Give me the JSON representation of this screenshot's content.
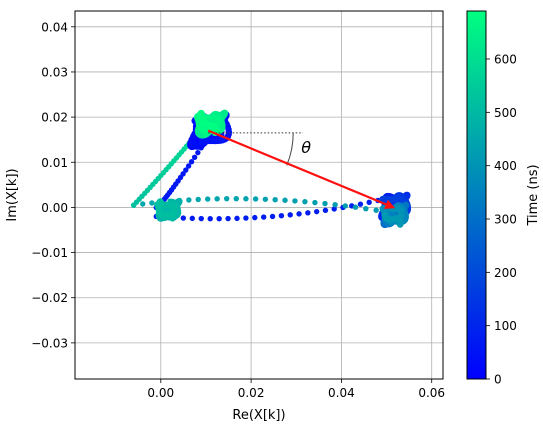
{
  "chart_data": {
    "type": "scatter",
    "xlabel": "Re(X[k])",
    "ylabel": "Im(X[k])",
    "xlim": [
      -0.019,
      0.0625
    ],
    "ylim": [
      -0.038,
      0.0435
    ],
    "xticks": [
      0.0,
      0.02,
      0.04,
      0.06
    ],
    "xtick_labels": [
      "0.00",
      "0.02",
      "0.04",
      "0.06"
    ],
    "yticks": [
      -0.03,
      -0.02,
      -0.01,
      0.0,
      0.01,
      0.02,
      0.03,
      0.04
    ],
    "ytick_labels": [
      "−0.03",
      "−0.02",
      "−0.01",
      "0.00",
      "0.01",
      "0.02",
      "0.03",
      "0.04"
    ],
    "grid": true,
    "colormap": "winter",
    "colorbar": {
      "label": "Time (ns)",
      "range": [
        0,
        690
      ],
      "ticks": [
        0,
        100,
        200,
        300,
        400,
        500,
        600
      ],
      "tick_labels": [
        "0",
        "100",
        "200",
        "300",
        "400",
        "500",
        "600"
      ]
    },
    "clusters": [
      {
        "center": [
          0.0105,
          0.017
        ],
        "time_start": 0,
        "time_end": 60,
        "size": 0.0035
      },
      {
        "center": [
          0.0515,
          0.0
        ],
        "time_start": 85,
        "time_end": 180,
        "size": 0.0025
      },
      {
        "center": [
          0.0515,
          -0.002
        ],
        "time_start": 250,
        "time_end": 420,
        "size": 0.0022
      },
      {
        "center": [
          0.0015,
          -0.001
        ],
        "time_start": 460,
        "time_end": 520,
        "size": 0.002
      },
      {
        "center": [
          0.011,
          0.018
        ],
        "time_start": 600,
        "time_end": 690,
        "size": 0.0025
      }
    ],
    "transitions": [
      {
        "from": [
          0.0105,
          0.0155
        ],
        "via": [
          0.0,
          0.0
        ],
        "to": [
          -0.001,
          0.0
        ],
        "time_start": 60,
        "time_end": 70
      },
      {
        "from": [
          -0.001,
          -0.002
        ],
        "via": [
          0.025,
          -0.004
        ],
        "to": [
          0.05,
          0.002
        ],
        "time_start": 70,
        "time_end": 85
      },
      {
        "from": [
          0.05,
          -0.001
        ],
        "via": [
          0.02,
          0.004
        ],
        "to": [
          -0.006,
          0.0005
        ],
        "time_start": 420,
        "time_end": 460
      },
      {
        "from": [
          -0.006,
          0.0005
        ],
        "via": [
          0.002,
          0.009
        ],
        "to": [
          0.009,
          0.0175
        ],
        "time_start": 520,
        "time_end": 600
      }
    ],
    "arrow": {
      "from": [
        0.0105,
        0.017
      ],
      "to": [
        0.0515,
        0.0
      ],
      "color": "#ff1010"
    },
    "reference_line": {
      "from": [
        0.0105,
        0.0165
      ],
      "to": [
        0.0315,
        0.0165
      ]
    },
    "angle_label": "θ"
  }
}
